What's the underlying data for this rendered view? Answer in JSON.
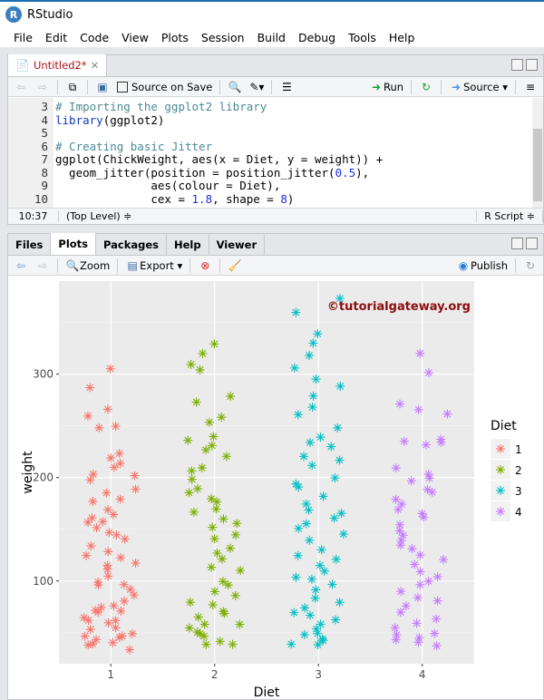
{
  "app": {
    "title": "RStudio"
  },
  "menu": [
    "File",
    "Edit",
    "Code",
    "View",
    "Plots",
    "Session",
    "Build",
    "Debug",
    "Tools",
    "Help"
  ],
  "editor": {
    "tab": "Untitled2*",
    "toolbar": {
      "source_on_save": "Source on Save",
      "run": "Run",
      "source": "Source"
    },
    "lines": [
      {
        "n": "3",
        "parts": [
          [
            "cm",
            "# Importing the ggplot2 library"
          ]
        ]
      },
      {
        "n": "4",
        "parts": [
          [
            "fn",
            "library"
          ],
          [
            "",
            "(ggplot2)"
          ]
        ]
      },
      {
        "n": "5",
        "parts": []
      },
      {
        "n": "6",
        "parts": [
          [
            "cm",
            "# Creating basic Jitter"
          ]
        ]
      },
      {
        "n": "7",
        "parts": [
          [
            "",
            "ggplot(ChickWeight, aes(x = Diet, y = weight)) +"
          ]
        ]
      },
      {
        "n": "8",
        "parts": [
          [
            "",
            "  geom_jitter(position = position_jitter("
          ],
          [
            "num",
            "0.5"
          ],
          [
            "",
            "),"
          ]
        ]
      },
      {
        "n": "9",
        "parts": [
          [
            "",
            "              aes(colour = Diet),"
          ]
        ]
      },
      {
        "n": "10",
        "parts": [
          [
            "",
            "              cex = "
          ],
          [
            "num",
            "1.8"
          ],
          [
            "",
            ", shape = "
          ],
          [
            "num",
            "8"
          ],
          [
            "",
            ")"
          ]
        ]
      }
    ],
    "status": {
      "position": "10:37",
      "scope": "(Top Level) ≑",
      "filetype": "R Script ≑"
    }
  },
  "plots_pane": {
    "tabs": [
      "Files",
      "Plots",
      "Packages",
      "Help",
      "Viewer"
    ],
    "active_tab": "Plots",
    "toolbar": {
      "zoom": "Zoom",
      "export": "Export",
      "publish": "Publish"
    }
  },
  "chart_data": {
    "type": "scatter",
    "xlabel": "Diet",
    "ylabel": "weight",
    "categories": [
      "1",
      "2",
      "3",
      "4"
    ],
    "yticks": [
      100,
      200,
      300
    ],
    "ylim": [
      20,
      390
    ],
    "grid": true,
    "legend": {
      "title": "Diet",
      "placement": "right",
      "entries": [
        "1",
        "2",
        "3",
        "4"
      ]
    },
    "colors": [
      "#F8766D",
      "#7CAE00",
      "#00BFC4",
      "#C77CFF"
    ],
    "watermark": "©tutorialgateway.org",
    "series": [
      {
        "name": "1",
        "values": [
          305,
          288,
          266,
          258,
          250,
          247,
          225,
          220,
          215,
          210,
          205,
          200,
          198,
          190,
          185,
          180,
          175,
          170,
          165,
          160,
          158,
          155,
          150,
          148,
          145,
          140,
          135,
          130,
          125,
          122,
          118,
          115,
          110,
          105,
          100,
          98,
          95,
          90,
          85,
          80,
          78,
          75,
          72,
          70,
          68,
          65,
          62,
          60,
          58,
          55,
          52,
          50,
          48,
          46,
          44,
          42,
          41,
          40,
          39,
          35
        ]
      },
      {
        "name": "2",
        "values": [
          331,
          320,
          310,
          305,
          280,
          275,
          260,
          255,
          240,
          235,
          230,
          225,
          220,
          210,
          205,
          200,
          190,
          185,
          180,
          175,
          170,
          165,
          160,
          155,
          150,
          145,
          140,
          130,
          125,
          120,
          115,
          110,
          100,
          95,
          90,
          85,
          80,
          75,
          72,
          70,
          65,
          60,
          58,
          55,
          50,
          48,
          45,
          42,
          40,
          39
        ]
      },
      {
        "name": "3",
        "values": [
          373,
          361,
          340,
          330,
          320,
          305,
          295,
          290,
          280,
          270,
          260,
          250,
          240,
          235,
          230,
          220,
          215,
          210,
          200,
          195,
          190,
          180,
          175,
          170,
          165,
          160,
          155,
          150,
          145,
          140,
          130,
          125,
          120,
          115,
          110,
          105,
          100,
          95,
          90,
          85,
          80,
          75,
          70,
          65,
          62,
          60,
          55,
          50,
          48,
          45,
          42,
          40,
          39
        ]
      },
      {
        "name": "4",
        "values": [
          322,
          303,
          272,
          265,
          260,
          237,
          235,
          233,
          230,
          210,
          205,
          200,
          195,
          190,
          185,
          180,
          175,
          170,
          165,
          160,
          155,
          150,
          145,
          140,
          135,
          130,
          125,
          120,
          115,
          110,
          105,
          100,
          95,
          90,
          85,
          80,
          75,
          70,
          65,
          60,
          55,
          50,
          48,
          45,
          42,
          40,
          39
        ]
      }
    ]
  }
}
